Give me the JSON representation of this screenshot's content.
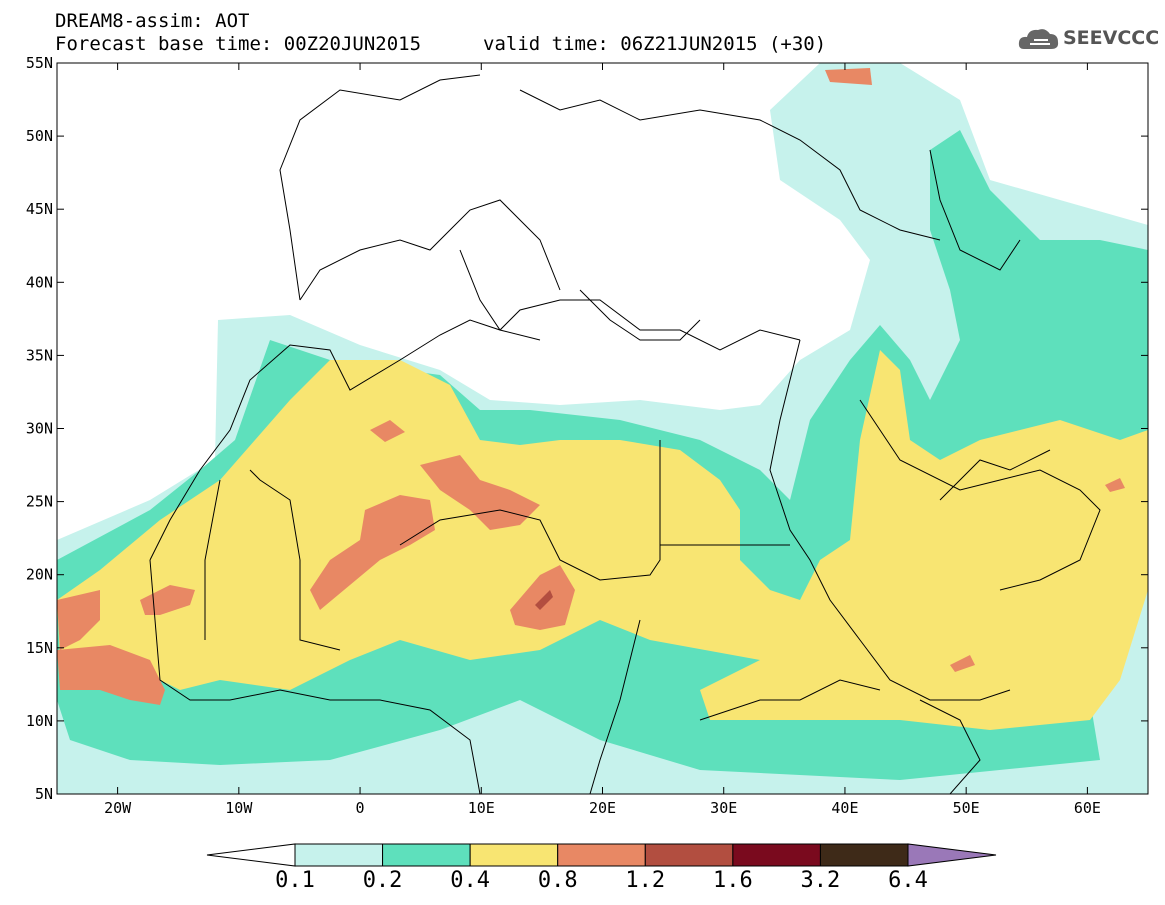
{
  "header": {
    "line1": "DREAM8-assim: AOT",
    "line2": "Forecast base time: 00Z20JUN2015",
    "line3": "valid time: 06Z21JUN2015 (+30)",
    "logo_text": "SEEVCCC"
  },
  "map": {
    "lon_range": [
      -25,
      65
    ],
    "lat_range": [
      5,
      55
    ],
    "lon_ticks": [
      "20W",
      "10W",
      "0",
      "10E",
      "20E",
      "30E",
      "40E",
      "50E",
      "60E"
    ],
    "lat_ticks": [
      "55N",
      "50N",
      "45N",
      "40N",
      "35N",
      "30N",
      "25N",
      "20N",
      "15N",
      "10N",
      "5N"
    ]
  },
  "colorbar": {
    "labels": [
      "0.1",
      "0.2",
      "0.4",
      "0.8",
      "1.2",
      "1.6",
      "3.2",
      "6.4"
    ],
    "colors": [
      "#c6f2ec",
      "#5ee0bc",
      "#f8e572",
      "#e88864",
      "#b24e40",
      "#7a0a1e",
      "#3e2a18",
      "#9a78b8"
    ]
  },
  "legend_colors": {
    "below": "#ffffff",
    "c1": "#c6f2ec",
    "c2": "#5ee0bc",
    "c3": "#f8e572",
    "c4": "#e88864",
    "c5": "#b24e40"
  }
}
